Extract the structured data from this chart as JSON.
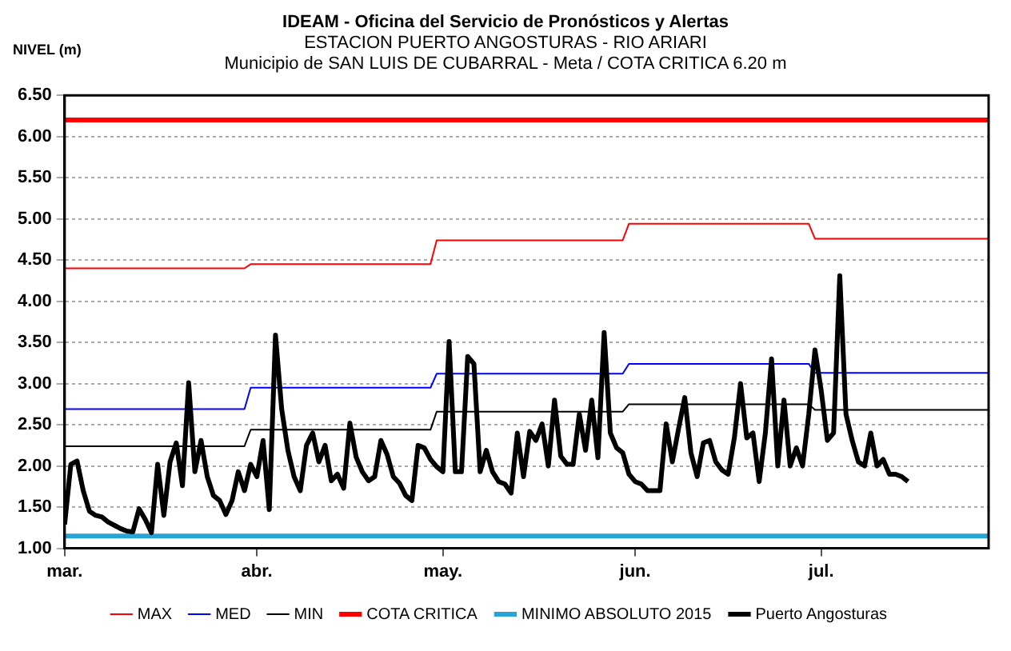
{
  "chart_data": {
    "type": "line",
    "title": "IDEAM - Oficina del Servicio de Pronósticos y Alertas",
    "subtitle": "ESTACION PUERTO ANGOSTURAS - RIO ARIARI\nMunicipio de SAN LUIS DE CUBARRAL - Meta / COTA CRITICA 6.20 m",
    "ylabel": "NIVEL (m)",
    "xlim": [
      "--03-01",
      "--07-28"
    ],
    "xticks": [
      {
        "value": "--03-01",
        "label": "mar."
      },
      {
        "value": "--04-01",
        "label": "abr."
      },
      {
        "value": "--05-01",
        "label": "may."
      },
      {
        "value": "--06-01",
        "label": "jun."
      },
      {
        "value": "--07-01",
        "label": "jul."
      }
    ],
    "ylim": [
      1,
      6.5
    ],
    "yticks": [
      {
        "value": 1,
        "label": "1.00"
      },
      {
        "value": 1.5,
        "label": "1.50"
      },
      {
        "value": 2,
        "label": "2.00"
      },
      {
        "value": 2.5,
        "label": "2.50"
      },
      {
        "value": 3,
        "label": "3.00"
      },
      {
        "value": 3.5,
        "label": "3.50"
      },
      {
        "value": 4,
        "label": "4.00"
      },
      {
        "value": 4.5,
        "label": "4.50"
      },
      {
        "value": 5,
        "label": "5.00"
      },
      {
        "value": 5.5,
        "label": "5.50"
      },
      {
        "value": 6,
        "label": "6.00"
      },
      {
        "value": 6.5,
        "label": "6.50"
      }
    ],
    "grid": "y",
    "legend": "bottom",
    "marker": "none",
    "line_style": "solid",
    "series": [
      {
        "name": "MAX",
        "color": "#ff0000",
        "x": [
          "--03-01",
          "--03-30",
          "--03-31",
          "--04-29",
          "--04-30",
          "--05-30",
          "--05-31",
          "--06-29",
          "--06-30",
          "--07-28"
        ],
        "values": [
          4.4,
          4.4,
          4.45,
          4.45,
          4.74,
          4.74,
          4.94,
          4.94,
          4.76,
          4.76
        ]
      },
      {
        "name": "MED",
        "color": "#0000ff",
        "x": [
          "--03-01",
          "--03-30",
          "--03-31",
          "--04-29",
          "--04-30",
          "--05-30",
          "--05-31",
          "--06-29",
          "--06-30",
          "--07-28"
        ],
        "values": [
          2.69,
          2.69,
          2.95,
          2.95,
          3.12,
          3.12,
          3.24,
          3.24,
          3.13,
          3.13
        ]
      },
      {
        "name": "MIN",
        "color": "#000000",
        "x": [
          "--03-01",
          "--03-30",
          "--03-31",
          "--04-29",
          "--04-30",
          "--05-30",
          "--05-31",
          "--06-29",
          "--06-30",
          "--07-28"
        ],
        "values": [
          2.24,
          2.24,
          2.44,
          2.44,
          2.66,
          2.66,
          2.75,
          2.75,
          2.68,
          2.68
        ]
      },
      {
        "name": "COTA CRITICA",
        "color": "#ff0000",
        "x": [
          "--03-01",
          "--07-28"
        ],
        "values": [
          6.2,
          6.2
        ]
      },
      {
        "name": "MINIMO ABSOLUTO 2015",
        "color": "#29a3d6",
        "x": [
          "--03-01",
          "--07-28"
        ],
        "values": [
          1.15,
          1.15
        ]
      },
      {
        "name": "Puerto Angosturas",
        "color": "#000000",
        "x": [
          "--03-01",
          "--03-02",
          "--03-03",
          "--03-04",
          "--03-05",
          "--03-06",
          "--03-07",
          "--03-08",
          "--03-09",
          "--03-10",
          "--03-11",
          "--03-12",
          "--03-13",
          "--03-14",
          "--03-15",
          "--03-16",
          "--03-17",
          "--03-18",
          "--03-19",
          "--03-20",
          "--03-21",
          "--03-22",
          "--03-23",
          "--03-24",
          "--03-25",
          "--03-26",
          "--03-27",
          "--03-28",
          "--03-29",
          "--03-30",
          "--03-31",
          "--04-01",
          "--04-02",
          "--04-03",
          "--04-04",
          "--04-05",
          "--04-06",
          "--04-07",
          "--04-08",
          "--04-09",
          "--04-10",
          "--04-11",
          "--04-12",
          "--04-13",
          "--04-14",
          "--04-15",
          "--04-16",
          "--04-17",
          "--04-18",
          "--04-19",
          "--04-20",
          "--04-21",
          "--04-22",
          "--04-23",
          "--04-24",
          "--04-25",
          "--04-26",
          "--04-27",
          "--04-28",
          "--04-29",
          "--04-30",
          "--05-01",
          "--05-02",
          "--05-03",
          "--05-04",
          "--05-05",
          "--05-06",
          "--05-07",
          "--05-08",
          "--05-09",
          "--05-10",
          "--05-11",
          "--05-12",
          "--05-13",
          "--05-14",
          "--05-15",
          "--05-16",
          "--05-17",
          "--05-18",
          "--05-19",
          "--05-20",
          "--05-21",
          "--05-22",
          "--05-23",
          "--05-24",
          "--05-25",
          "--05-26",
          "--05-27",
          "--05-28",
          "--05-29",
          "--05-30",
          "--05-31",
          "--06-01",
          "--06-02",
          "--06-03",
          "--06-04",
          "--06-05",
          "--06-06",
          "--06-07",
          "--06-08",
          "--06-09",
          "--06-10",
          "--06-11",
          "--06-12",
          "--06-13",
          "--06-14",
          "--06-15",
          "--06-16",
          "--06-17",
          "--06-18",
          "--06-19",
          "--06-20",
          "--06-21",
          "--06-22",
          "--06-23",
          "--06-24",
          "--06-25",
          "--06-26",
          "--06-27",
          "--06-28",
          "--06-29",
          "--06-30",
          "--07-01",
          "--07-02",
          "--07-03",
          "--07-04",
          "--07-05",
          "--07-06",
          "--07-07",
          "--07-08",
          "--07-09",
          "--07-10",
          "--07-11",
          "--07-12",
          "--07-13",
          "--07-14",
          "--07-15"
        ],
        "values": [
          1.29,
          2.02,
          2.06,
          1.7,
          1.45,
          1.4,
          1.38,
          1.32,
          1.28,
          1.24,
          1.21,
          1.2,
          1.48,
          1.35,
          1.19,
          2.02,
          1.4,
          2.05,
          2.28,
          1.76,
          3.01,
          1.93,
          2.31,
          1.87,
          1.64,
          1.58,
          1.41,
          1.58,
          1.93,
          1.7,
          2.02,
          1.87,
          2.31,
          1.47,
          3.59,
          2.69,
          2.19,
          1.87,
          1.7,
          2.25,
          2.4,
          2.05,
          2.25,
          1.82,
          1.9,
          1.73,
          2.52,
          2.11,
          1.93,
          1.82,
          1.87,
          2.31,
          2.14,
          1.87,
          1.79,
          1.64,
          1.58,
          2.25,
          2.22,
          2.08,
          1.99,
          1.93,
          3.51,
          1.93,
          1.93,
          3.33,
          3.24,
          1.93,
          2.19,
          1.93,
          1.81,
          1.78,
          1.67,
          2.4,
          1.87,
          2.42,
          2.31,
          2.51,
          2.0,
          2.8,
          2.12,
          2.02,
          2.02,
          2.63,
          2.19,
          2.8,
          2.1,
          3.62,
          2.4,
          2.22,
          2.16,
          1.9,
          1.81,
          1.78,
          1.7,
          1.7,
          1.7,
          2.51,
          2.05,
          2.45,
          2.83,
          2.16,
          1.87,
          2.28,
          2.31,
          2.05,
          1.95,
          1.9,
          2.34,
          3.0,
          2.34,
          2.4,
          1.81,
          2.4,
          3.3,
          2.0,
          2.8,
          2.0,
          2.22,
          2.0,
          2.63,
          3.41,
          2.92,
          2.31,
          2.4,
          4.31,
          2.63,
          2.31,
          2.05,
          2.0,
          2.4,
          2.0,
          2.08,
          1.9,
          1.9,
          1.87,
          1.81
        ]
      }
    ]
  }
}
